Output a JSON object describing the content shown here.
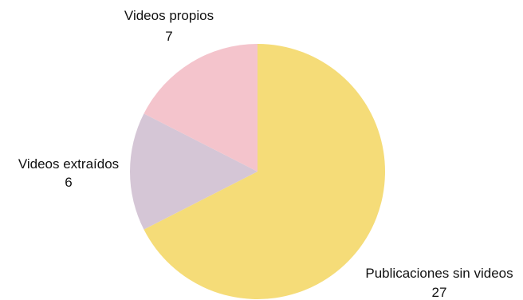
{
  "chart_data": {
    "type": "pie",
    "categories": [
      "Publicaciones sin videos",
      "Videos extraídos",
      "Videos propios"
    ],
    "values": [
      27,
      6,
      7
    ],
    "colors": [
      "#f5dc78",
      "#d5c6d6",
      "#f4c4cc"
    ],
    "start": "12 o'clock",
    "direction": "clockwise",
    "legend": "none",
    "labels": [
      {
        "name": "Publicaciones sin videos",
        "value": "27"
      },
      {
        "name": "Videos extraídos",
        "value": "6"
      },
      {
        "name": "Videos propios",
        "value": "7"
      }
    ]
  }
}
